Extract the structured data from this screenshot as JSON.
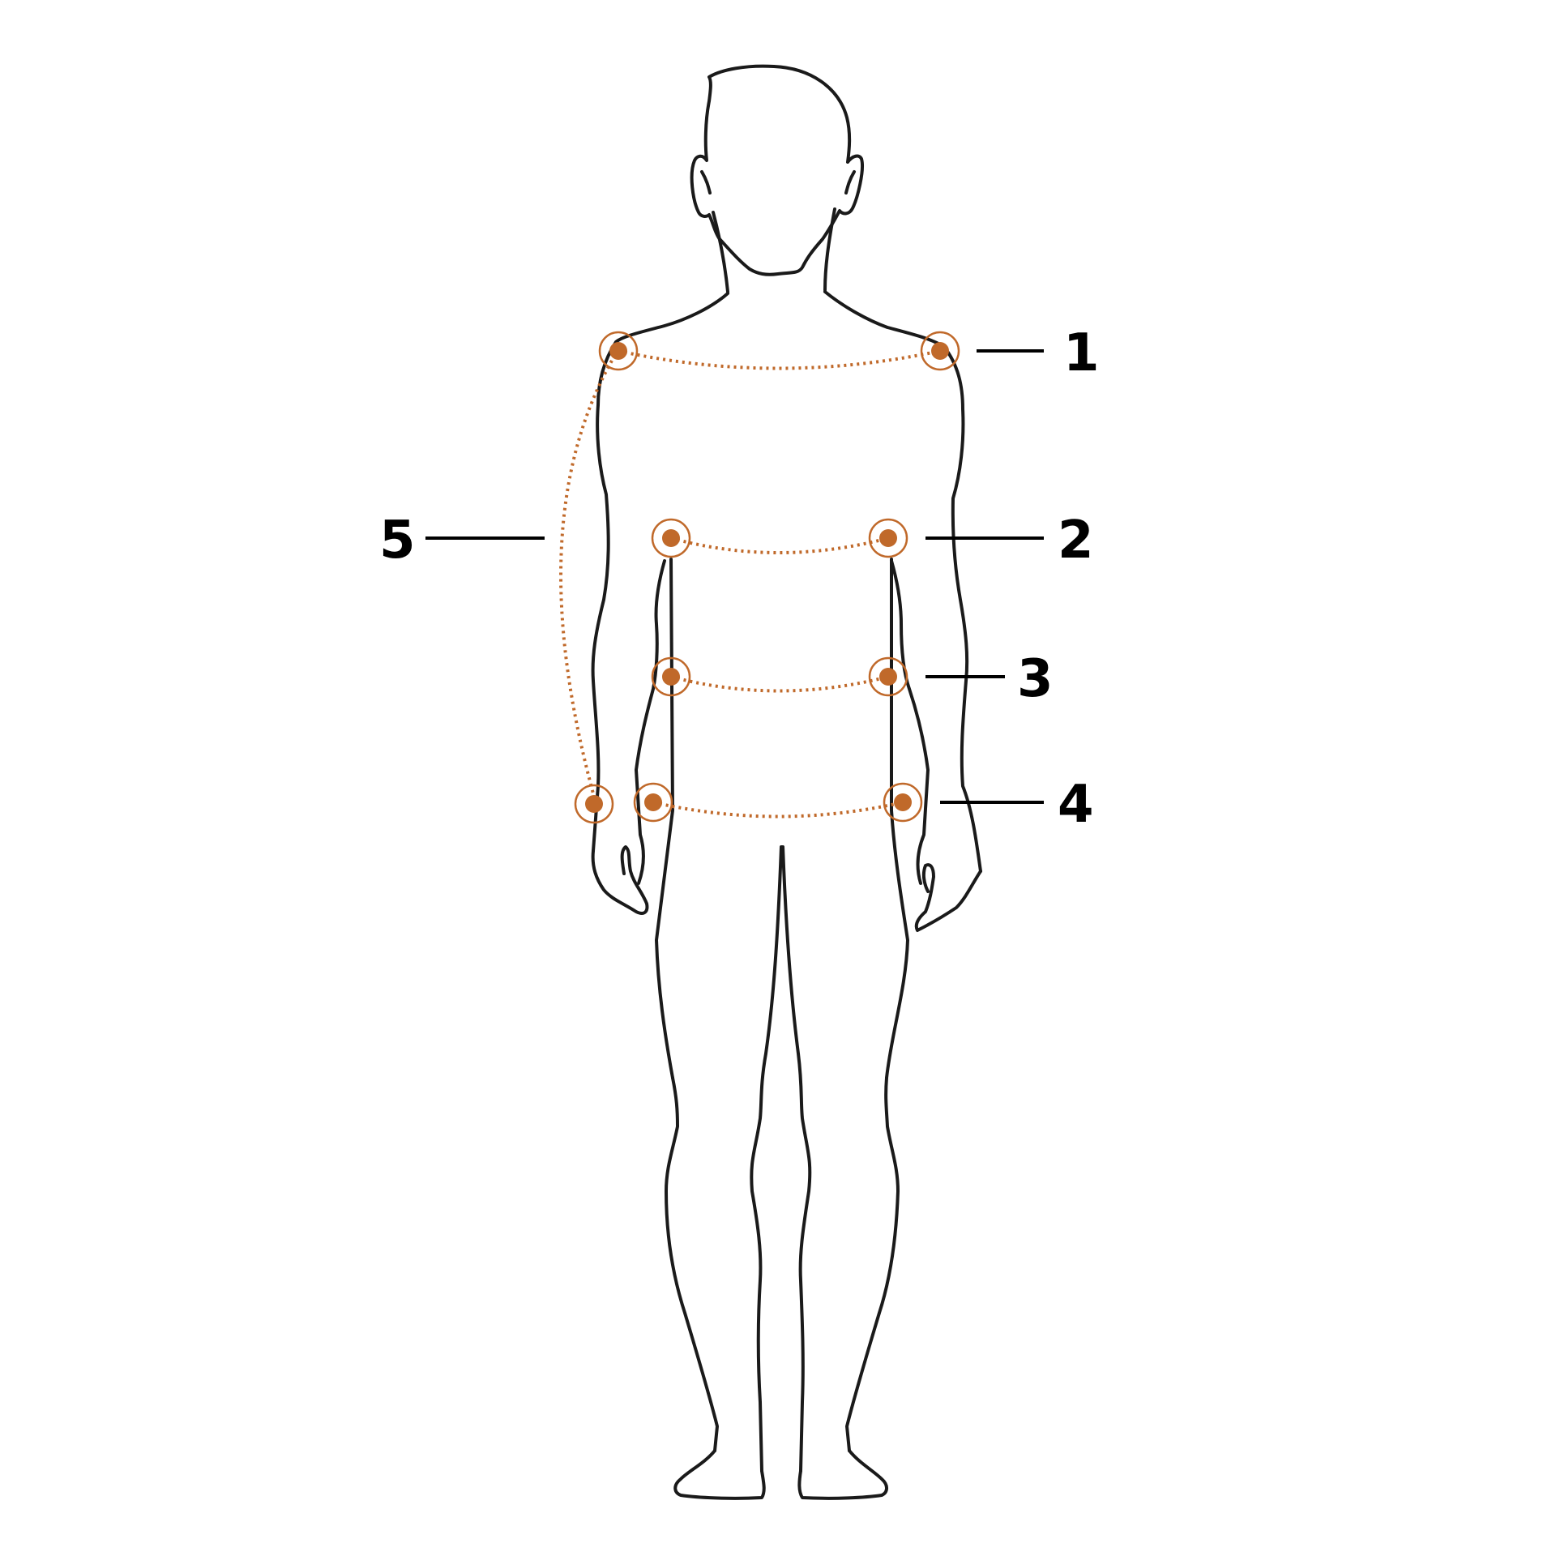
{
  "colors": {
    "accent": "#c0692a",
    "outline": "#1a1a1a",
    "background": "#ffffff"
  },
  "labels": {
    "m1": "1",
    "m2": "2",
    "m3": "3",
    "m4": "4",
    "m5": "5"
  }
}
